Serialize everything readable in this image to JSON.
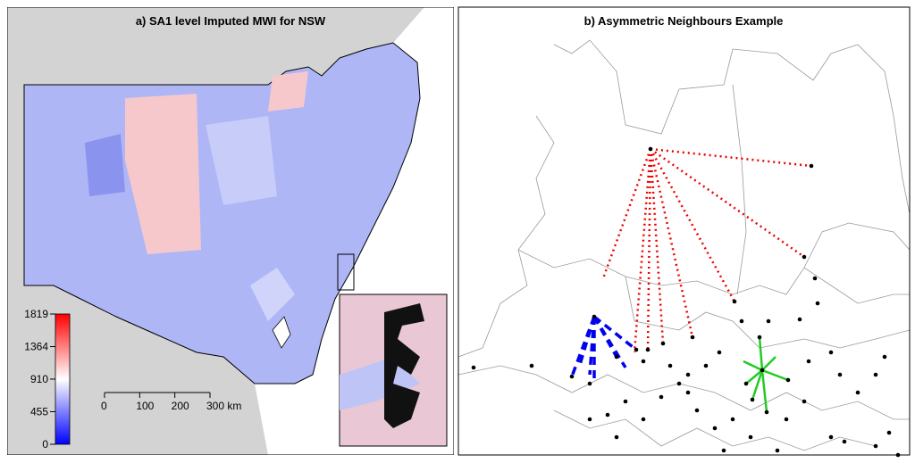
{
  "panels": [
    {
      "title": "a) SA1 level Imputed MWI for NSW",
      "colorbar": {
        "lim": [
          0,
          1819
        ],
        "ticks": [
          0,
          455,
          910,
          1364,
          1819
        ],
        "colors": [
          "#0000ff",
          "#ffffff",
          "#ff0000"
        ]
      },
      "scale_bar": {
        "lim": [
          0,
          300
        ],
        "ticks": [
          0,
          100,
          200,
          {
            "value": 300,
            "label": "300 km"
          }
        ]
      }
    },
    {
      "title": "b) Asymmetric Neighbours Example"
    }
  ]
}
